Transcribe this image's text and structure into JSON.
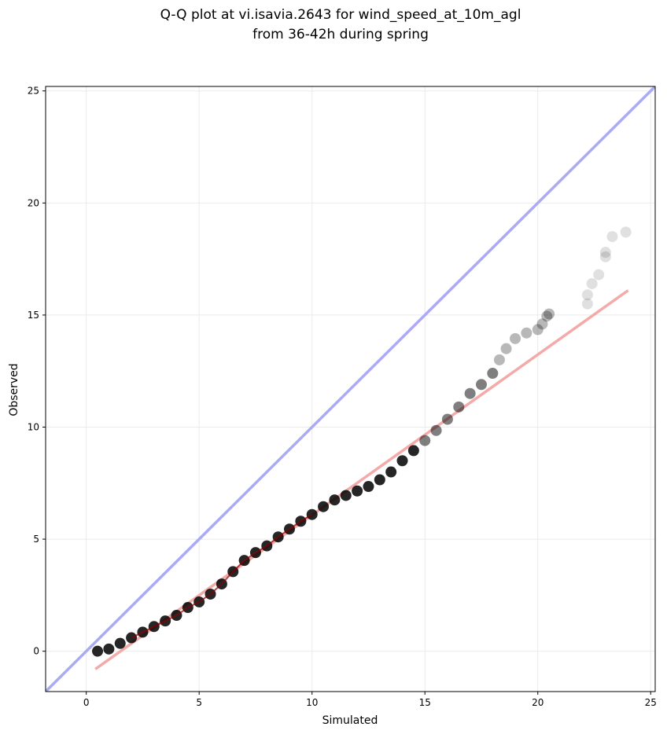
{
  "chart_data": {
    "type": "scatter",
    "title": "Q-Q plot at vi.isavia.2643 for wind_speed_at_10m_agl",
    "subtitle": "from 36-42h during spring",
    "xlabel": "Simulated",
    "ylabel": "Observed",
    "xlim": [
      -1.8,
      25.2
    ],
    "ylim": [
      -1.8,
      25.2
    ],
    "xticks": [
      0,
      5,
      10,
      15,
      20,
      25
    ],
    "yticks": [
      0,
      5,
      10,
      15,
      20,
      25
    ],
    "xtick_labels": [
      "0",
      "5",
      "10",
      "15",
      "20",
      "25"
    ],
    "ytick_labels": [
      "0",
      "5",
      "10",
      "15",
      "20",
      "25"
    ],
    "grid": true,
    "reference_line": {
      "x": [
        -1.8,
        25.2
      ],
      "y": [
        -1.8,
        25.2
      ],
      "color": "#aaaaf5"
    },
    "fit_line": {
      "x": [
        0.4,
        24.0
      ],
      "y": [
        -0.8,
        16.1
      ],
      "color": "#f5aaaa"
    },
    "point_color": "#000000",
    "quantile_path": [
      [
        0.5,
        0.0
      ],
      [
        1.0,
        0.1
      ],
      [
        1.5,
        0.35
      ],
      [
        2.0,
        0.6
      ],
      [
        2.5,
        0.85
      ],
      [
        3.0,
        1.1
      ],
      [
        3.5,
        1.35
      ],
      [
        4.0,
        1.6
      ],
      [
        4.5,
        1.95
      ],
      [
        5.0,
        2.2
      ],
      [
        5.5,
        2.55
      ],
      [
        6.0,
        3.0
      ],
      [
        6.5,
        3.55
      ],
      [
        7.0,
        4.05
      ],
      [
        7.5,
        4.4
      ],
      [
        8.0,
        4.7
      ],
      [
        8.5,
        5.1
      ],
      [
        9.0,
        5.45
      ],
      [
        9.5,
        5.8
      ],
      [
        10.0,
        6.1
      ],
      [
        10.5,
        6.45
      ],
      [
        11.0,
        6.75
      ],
      [
        11.5,
        6.95
      ],
      [
        12.0,
        7.15
      ],
      [
        12.5,
        7.35
      ],
      [
        13.0,
        7.65
      ],
      [
        13.5,
        8.0
      ],
      [
        14.0,
        8.5
      ],
      [
        14.5,
        8.95
      ],
      [
        15.0,
        9.4
      ],
      [
        15.5,
        9.85
      ],
      [
        16.0,
        10.35
      ],
      [
        16.5,
        10.9
      ],
      [
        17.0,
        11.5
      ],
      [
        17.5,
        11.9
      ],
      [
        18.0,
        12.4
      ],
      [
        18.3,
        13.0
      ],
      [
        18.6,
        13.5
      ],
      [
        19.0,
        13.95
      ],
      [
        19.5,
        14.2
      ],
      [
        20.0,
        14.35
      ],
      [
        20.2,
        14.6
      ],
      [
        20.4,
        14.95
      ],
      [
        20.5,
        15.05
      ]
    ],
    "tail_points": [
      [
        22.2,
        15.5
      ],
      [
        22.2,
        15.9
      ],
      [
        22.4,
        16.4
      ],
      [
        22.7,
        16.8
      ],
      [
        23.0,
        17.6
      ],
      [
        23.0,
        17.8
      ],
      [
        23.3,
        18.5
      ],
      [
        23.9,
        18.7
      ]
    ]
  }
}
